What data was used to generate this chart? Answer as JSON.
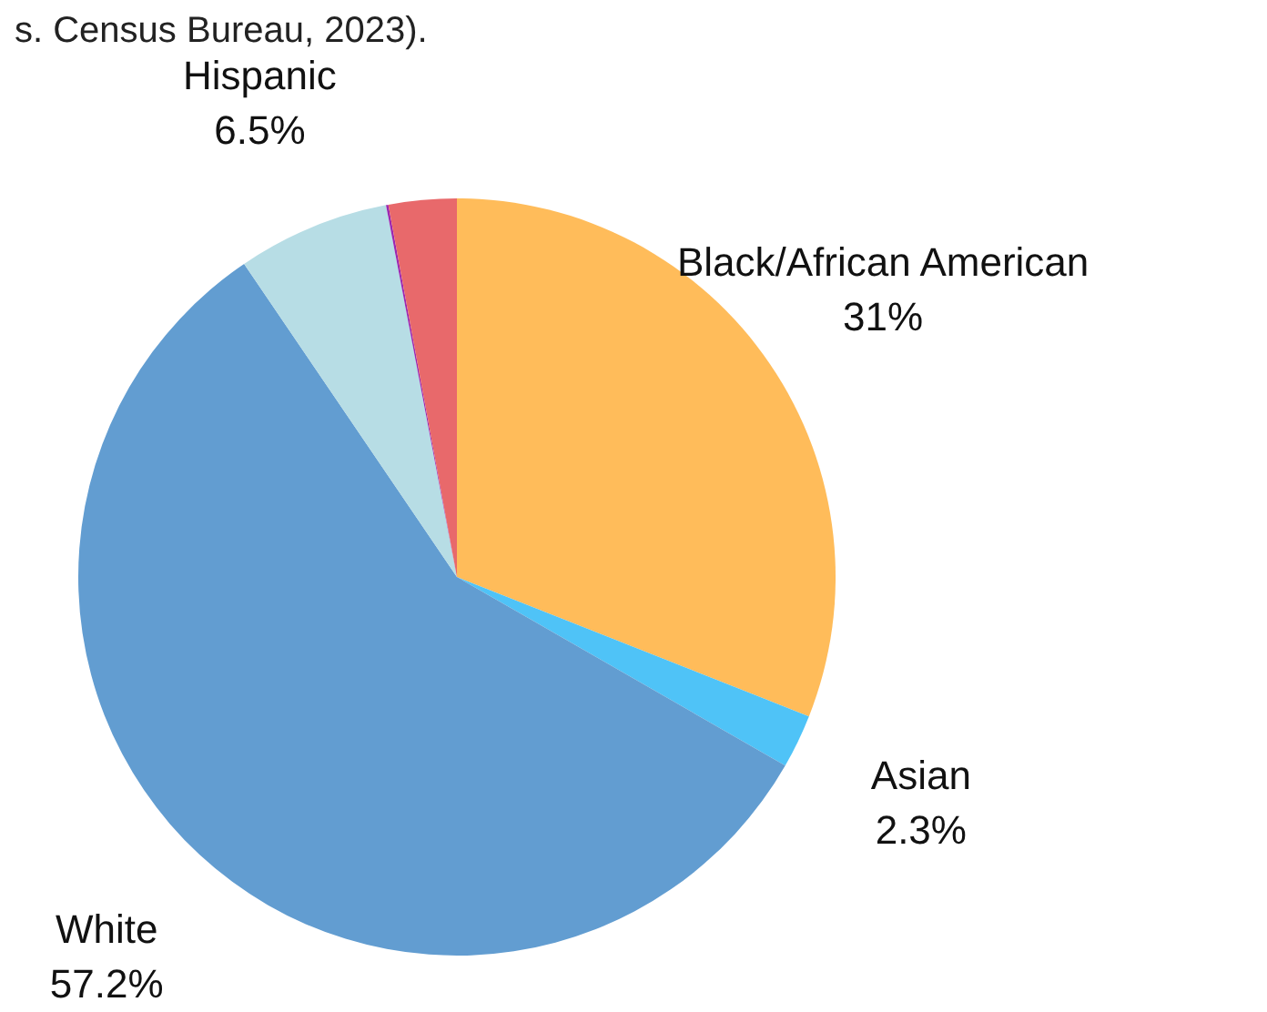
{
  "chart_data": {
    "type": "pie",
    "annotations": [
      "s. Census Bureau, 2023)."
    ],
    "categories": [
      "Black/African American",
      "Asian",
      "White",
      "Hispanic",
      null,
      null
    ],
    "values": [
      31,
      2.3,
      57.2,
      6.5,
      0.1,
      2.9
    ],
    "value_labels": [
      "31%",
      "2.3%",
      "57.2%",
      "6.5%",
      null,
      null
    ],
    "colors": [
      "#ffbc5a",
      "#4fc3f7",
      "#629dd1",
      "#b7dde5",
      "#9c27b0",
      "#e8696b"
    ],
    "legend": false
  }
}
